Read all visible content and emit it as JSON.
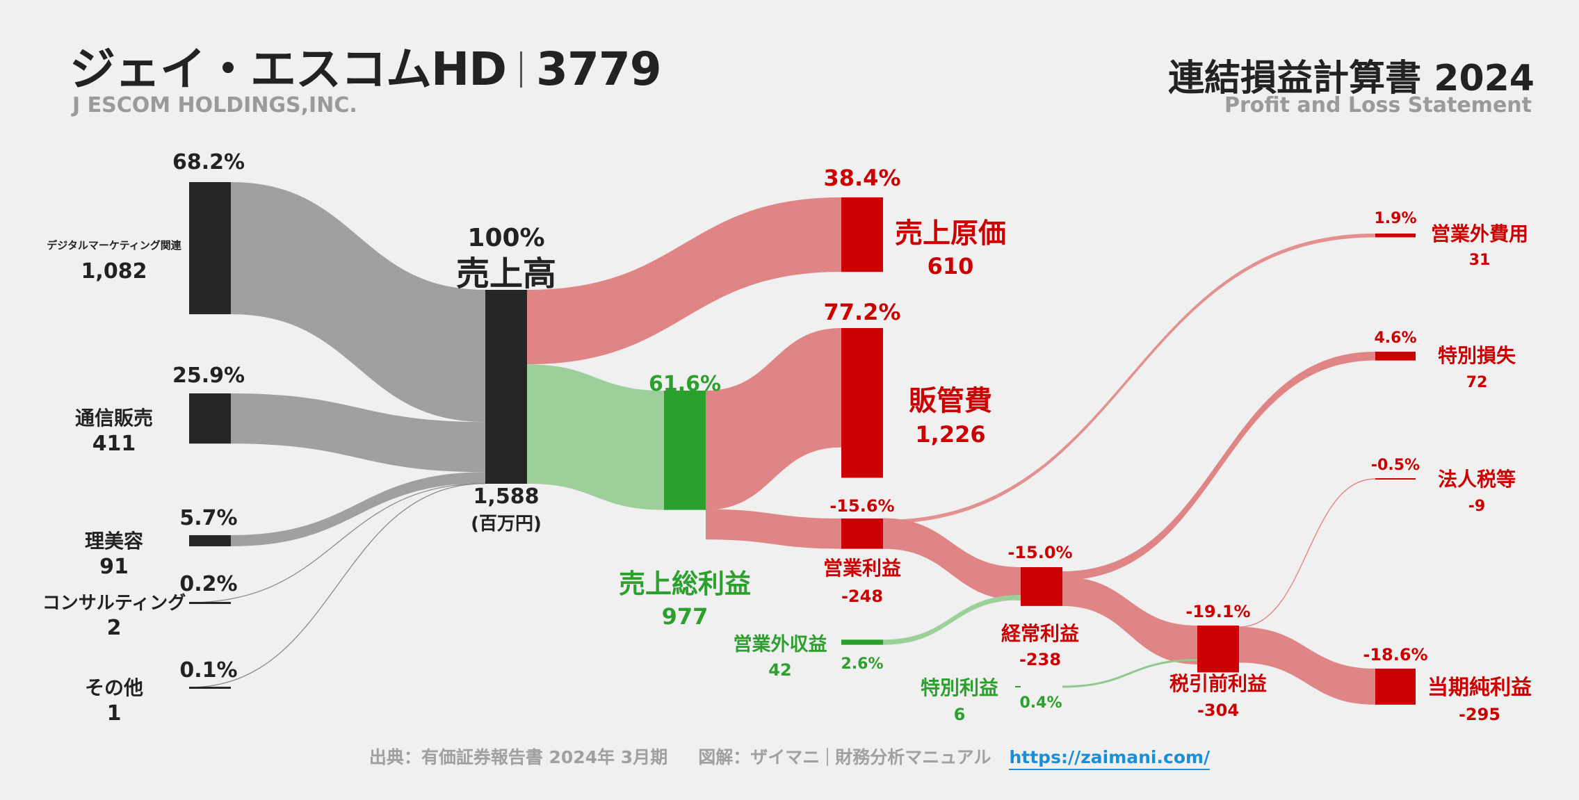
{
  "header": {
    "company": "ジェイ・エスコムHD",
    "code": "3779",
    "company_en": "J ESCOM HOLDINGS,INC.",
    "statement": "連結損益計算書 2024",
    "statement_en": "Profit and Loss Statement"
  },
  "footer": {
    "source": "出典：有価証券報告書 2024年 3月期",
    "credit": "図解：ザイマニ",
    "credit2": "財務分析マニュアル",
    "url": "https://zaimani.com/"
  },
  "colors": {
    "node_dark": "#262626",
    "flow_gray": "#a0a0a0",
    "flow_red": "#e08585",
    "node_red": "#cc0000",
    "flow_green": "#9dcf9a",
    "node_green": "#2ca02c",
    "text_dark": "#222222",
    "text_red": "#cc0000",
    "text_green": "#2ca02c"
  },
  "chart_data": {
    "type": "sankey",
    "unit": "(百万円)",
    "nodes": [
      {
        "id": "digital",
        "label": "デジタルマーケティング関連",
        "value": "1,082",
        "pct": "68.2%",
        "color": "dark"
      },
      {
        "id": "tsushin",
        "label": "通信販売",
        "value": "411",
        "pct": "25.9%",
        "color": "dark"
      },
      {
        "id": "ribiyo",
        "label": "理美容",
        "value": "91",
        "pct": "5.7%",
        "color": "dark"
      },
      {
        "id": "consult",
        "label": "コンサルティング",
        "value": "2",
        "pct": "0.2%",
        "color": "dark"
      },
      {
        "id": "other",
        "label": "その他",
        "value": "1",
        "pct": "0.1%",
        "color": "dark"
      },
      {
        "id": "revenue",
        "label": "売上高",
        "value": "1,588",
        "pct": "100%",
        "color": "dark"
      },
      {
        "id": "cogs",
        "label": "売上原価",
        "value": "610",
        "pct": "38.4%",
        "color": "red"
      },
      {
        "id": "gross",
        "label": "売上総利益",
        "value": "977",
        "pct": "61.6%",
        "color": "green"
      },
      {
        "id": "sga",
        "label": "販管費",
        "value": "1,226",
        "pct": "77.2%",
        "color": "red"
      },
      {
        "id": "op",
        "label": "営業利益",
        "value": "-248",
        "pct": "-15.6%",
        "color": "red"
      },
      {
        "id": "nonop_inc",
        "label": "営業外収益",
        "value": "42",
        "pct": "2.6%",
        "color": "green"
      },
      {
        "id": "nonop_exp",
        "label": "営業外費用",
        "value": "31",
        "pct": "1.9%",
        "color": "red"
      },
      {
        "id": "ordinary",
        "label": "経常利益",
        "value": "-238",
        "pct": "-15.0%",
        "color": "red"
      },
      {
        "id": "ext_gain",
        "label": "特別利益",
        "value": "6",
        "pct": "0.4%",
        "color": "green"
      },
      {
        "id": "ext_loss",
        "label": "特別損失",
        "value": "72",
        "pct": "4.6%",
        "color": "red"
      },
      {
        "id": "pretax",
        "label": "税引前利益",
        "value": "-304",
        "pct": "-19.1%",
        "color": "red"
      },
      {
        "id": "tax",
        "label": "法人税等",
        "value": "-9",
        "pct": "-0.5%",
        "color": "red"
      },
      {
        "id": "net",
        "label": "当期純利益",
        "value": "-295",
        "pct": "-18.6%",
        "color": "red"
      }
    ],
    "links": [
      {
        "source": "digital",
        "target": "revenue",
        "value": 1082
      },
      {
        "source": "tsushin",
        "target": "revenue",
        "value": 411
      },
      {
        "source": "ribiyo",
        "target": "revenue",
        "value": 91
      },
      {
        "source": "consult",
        "target": "revenue",
        "value": 2
      },
      {
        "source": "other",
        "target": "revenue",
        "value": 1
      },
      {
        "source": "revenue",
        "target": "cogs",
        "value": 610
      },
      {
        "source": "revenue",
        "target": "gross",
        "value": 977
      },
      {
        "source": "gross",
        "target": "sga",
        "value": 1226
      },
      {
        "source": "op",
        "target": "sga",
        "value": 248
      },
      {
        "source": "op",
        "target": "ordinary",
        "value": 248
      },
      {
        "source": "op",
        "target": "nonop_exp",
        "value": 31
      },
      {
        "source": "nonop_inc",
        "target": "ordinary",
        "value": 42
      },
      {
        "source": "ordinary",
        "target": "pretax",
        "value": 238
      },
      {
        "source": "ordinary",
        "target": "ext_loss",
        "value": 72
      },
      {
        "source": "ext_gain",
        "target": "pretax",
        "value": 6
      },
      {
        "source": "pretax",
        "target": "net",
        "value": 295
      },
      {
        "source": "pretax",
        "target": "tax",
        "value": 9
      }
    ]
  }
}
